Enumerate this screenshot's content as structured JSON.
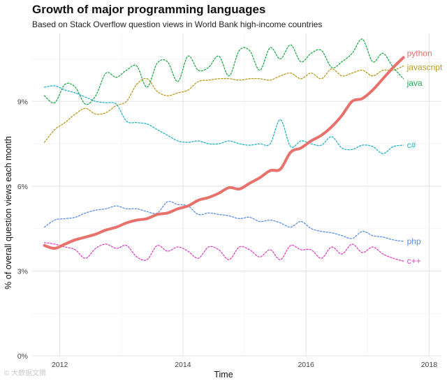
{
  "chart_data": {
    "type": "line",
    "title": "Growth of major programming languages",
    "subtitle": "Based on Stack Overflow question views in World Bank high-income countries",
    "xlabel": "Time",
    "ylabel": "% of overall question views each month",
    "xlim": [
      2011.55,
      2018.2
    ],
    "ylim": [
      0,
      11.4
    ],
    "x_ticks": [
      2012,
      2014,
      2016,
      2018
    ],
    "x_tick_labels": [
      "2012",
      "2014",
      "2016",
      "2018"
    ],
    "y_ticks": [
      0,
      3,
      6,
      9
    ],
    "y_tick_labels": [
      "0%",
      "3%",
      "6%",
      "9%"
    ],
    "grid": true,
    "legend": "direct labels at line ends",
    "x": [
      2011.75,
      2011.917,
      2012.083,
      2012.25,
      2012.417,
      2012.583,
      2012.75,
      2012.917,
      2013.083,
      2013.25,
      2013.417,
      2013.583,
      2013.75,
      2013.917,
      2014.083,
      2014.25,
      2014.417,
      2014.583,
      2014.75,
      2014.917,
      2015.083,
      2015.25,
      2015.417,
      2015.583,
      2015.75,
      2015.917,
      2016.083,
      2016.25,
      2016.417,
      2016.583,
      2016.75,
      2016.917,
      2017.083,
      2017.25,
      2017.417,
      2017.583
    ],
    "series": [
      {
        "name": "python",
        "color": "#e8726b",
        "style": "solid",
        "values": [
          3.9,
          3.8,
          3.95,
          4.1,
          4.2,
          4.3,
          4.45,
          4.55,
          4.7,
          4.8,
          4.85,
          5.0,
          5.05,
          5.2,
          5.3,
          5.5,
          5.6,
          5.75,
          5.95,
          5.9,
          6.1,
          6.3,
          6.55,
          6.6,
          7.2,
          7.35,
          7.6,
          7.8,
          8.1,
          8.5,
          9.0,
          9.1,
          9.4,
          9.8,
          10.2,
          10.55
        ]
      },
      {
        "name": "javascript",
        "color": "#b89b20",
        "style": "dotted",
        "values": [
          7.55,
          8.0,
          8.25,
          8.55,
          8.75,
          8.55,
          8.6,
          8.85,
          9.0,
          9.6,
          9.8,
          9.35,
          9.2,
          9.3,
          9.4,
          9.7,
          9.75,
          9.8,
          9.8,
          9.75,
          9.8,
          9.8,
          9.75,
          9.9,
          10.0,
          9.8,
          10.0,
          9.8,
          10.15,
          9.9,
          10.0,
          10.1,
          9.9,
          10.1,
          10.1,
          10.25
        ]
      },
      {
        "name": "java",
        "color": "#1fae4a",
        "style": "dotted",
        "values": [
          9.2,
          8.95,
          9.6,
          9.5,
          8.9,
          9.2,
          10.0,
          9.85,
          10.1,
          10.25,
          9.5,
          10.35,
          10.4,
          9.7,
          10.6,
          10.1,
          10.2,
          10.6,
          9.9,
          10.8,
          10.8,
          10.1,
          10.9,
          10.5,
          11.0,
          10.4,
          10.7,
          10.8,
          10.2,
          10.4,
          10.7,
          11.2,
          10.4,
          10.7,
          10.2,
          9.8
        ]
      },
      {
        "name": "c#",
        "color": "#22b5c8",
        "style": "dotted",
        "values": [
          9.5,
          9.55,
          9.4,
          9.3,
          9.15,
          9.0,
          8.95,
          8.9,
          8.3,
          8.25,
          8.2,
          8.0,
          7.8,
          7.6,
          7.55,
          7.6,
          7.5,
          7.5,
          7.6,
          7.5,
          7.45,
          7.5,
          7.5,
          8.35,
          7.4,
          7.6,
          7.5,
          7.45,
          7.75,
          7.35,
          7.3,
          7.45,
          7.4,
          7.15,
          7.4,
          7.45
        ]
      },
      {
        "name": "php",
        "color": "#5b8ee6",
        "style": "dotted",
        "values": [
          4.55,
          4.8,
          4.85,
          4.9,
          5.05,
          5.15,
          5.2,
          5.3,
          5.2,
          5.2,
          5.1,
          5.05,
          5.45,
          5.35,
          5.3,
          5.0,
          5.05,
          5.0,
          4.95,
          4.85,
          4.9,
          4.75,
          4.8,
          4.7,
          4.55,
          4.75,
          4.5,
          4.4,
          4.35,
          4.25,
          4.15,
          4.4,
          4.25,
          4.2,
          4.1,
          4.05
        ]
      },
      {
        "name": "c++",
        "color": "#e23fc6",
        "style": "dotted",
        "values": [
          4.0,
          3.95,
          3.85,
          3.75,
          3.45,
          3.8,
          3.95,
          3.8,
          3.9,
          3.5,
          3.4,
          3.9,
          3.7,
          3.85,
          3.7,
          3.45,
          3.85,
          3.75,
          3.4,
          3.85,
          3.75,
          3.5,
          3.75,
          3.4,
          3.9,
          3.75,
          3.75,
          3.45,
          3.85,
          3.6,
          3.95,
          3.65,
          3.85,
          3.6,
          3.45,
          3.35
        ]
      }
    ]
  },
  "watermark": "© 大数据文摘"
}
